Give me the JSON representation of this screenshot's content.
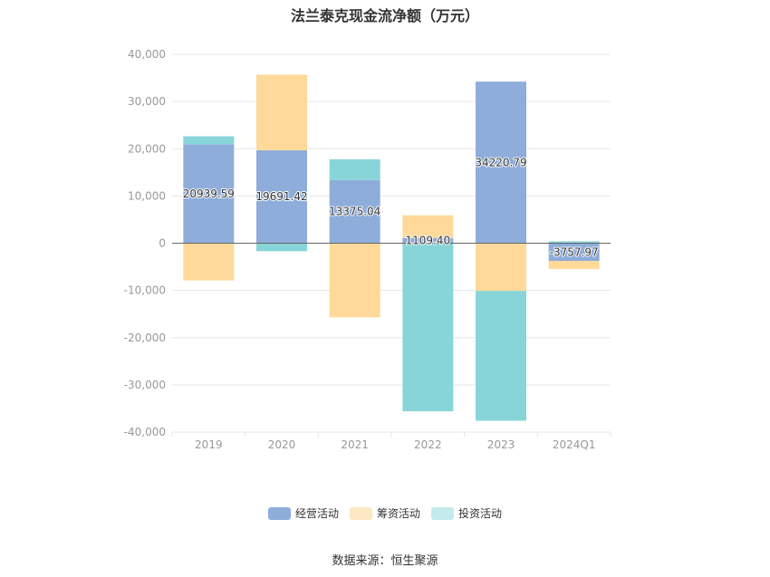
{
  "title": "法兰泰克现金流净额（万元）",
  "source": "数据来源：恒生聚源",
  "colors": {
    "operating": "#8eadda",
    "financing": "#fed999",
    "investing": "#88d5d9",
    "grid": "#e6e6e6",
    "zero_line": "#666666"
  },
  "chart_data": {
    "type": "bar",
    "stacked": true,
    "title": "法兰泰克现金流净额（万元）",
    "categories": [
      "2019",
      "2020",
      "2021",
      "2022",
      "2023",
      "2024Q1"
    ],
    "ylim": [
      -40000,
      40000
    ],
    "yticks": [
      "40,000",
      "30,000",
      "20,000",
      "10,000",
      "0",
      "-10,000",
      "-20,000",
      "-30,000",
      "-40,000"
    ],
    "ytick_values": [
      40000,
      30000,
      20000,
      10000,
      0,
      -10000,
      -20000,
      -30000,
      -40000
    ],
    "grid": true,
    "legend_position": "bottom",
    "series": [
      {
        "name": "经营活动",
        "key": "operating",
        "values": [
          20939.59,
          19691.42,
          13375.04,
          1109.4,
          34220.79,
          -3757.97
        ],
        "labels": [
          "20939.59",
          "19691.42",
          "13375.04",
          "1109.40",
          "34220.79",
          "-3757.97"
        ]
      },
      {
        "name": "筹资活动",
        "key": "financing",
        "values": [
          -7900,
          16000,
          -15700,
          4800,
          -10100,
          -1700
        ]
      },
      {
        "name": "投资活动",
        "key": "investing",
        "values": [
          1700,
          -1700,
          4400,
          -35600,
          -27500,
          400
        ]
      }
    ]
  }
}
